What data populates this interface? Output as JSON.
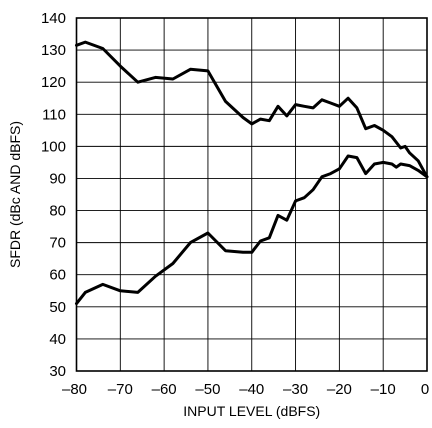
{
  "chart_data": {
    "type": "line",
    "title": "",
    "xlabel": "INPUT LEVEL (dBFS)",
    "ylabel": "SFDR (dBc AND dBFS)",
    "xlim": [
      -80,
      0
    ],
    "ylim": [
      30,
      140
    ],
    "x_ticks": [
      -80,
      -70,
      -60,
      -50,
      -40,
      -30,
      -20,
      -10,
      0
    ],
    "x_tick_labels": [
      "–80",
      "–70",
      "–60",
      "–50",
      "–40",
      "–30",
      "–20",
      "–10",
      "0"
    ],
    "y_ticks": [
      30,
      40,
      50,
      60,
      70,
      80,
      90,
      100,
      110,
      120,
      130,
      140
    ],
    "y_tick_labels": [
      "30",
      "40",
      "50",
      "60",
      "70",
      "80",
      "90",
      "100",
      "110",
      "120",
      "130",
      "140"
    ],
    "grid": true,
    "series": [
      {
        "x": [
          -80,
          -78,
          -74,
          -70,
          -66,
          -62,
          -58,
          -54,
          -50,
          -46,
          -42,
          -40,
          -38,
          -36,
          -34,
          -32,
          -30,
          -28,
          -26,
          -24,
          -22,
          -20,
          -18,
          -16,
          -14,
          -12,
          -10,
          -8,
          -6,
          -5,
          -4,
          -2,
          0
        ],
        "y": [
          131.5,
          132.5,
          130.5,
          125,
          120,
          121.5,
          121,
          124,
          123.5,
          114,
          109,
          107,
          108.5,
          108,
          112.5,
          109.5,
          113,
          112.5,
          112,
          114.5,
          113.5,
          112.5,
          115,
          112,
          105.5,
          106.5,
          105,
          103,
          99.5,
          100,
          98,
          95.5,
          90.5
        ]
      },
      {
        "x": [
          -80,
          -78,
          -74,
          -70,
          -66,
          -62,
          -58,
          -54,
          -50,
          -46,
          -42,
          -40,
          -38,
          -36,
          -34,
          -32,
          -30,
          -28,
          -26,
          -24,
          -22,
          -20,
          -18,
          -16,
          -14,
          -12,
          -10,
          -8,
          -7,
          -6,
          -4,
          -2,
          0
        ],
        "y": [
          51,
          54.5,
          57,
          55,
          54.5,
          59.5,
          63.5,
          70,
          73,
          67.5,
          67,
          67,
          70.5,
          71.5,
          78.5,
          77,
          83,
          84,
          86.5,
          90.5,
          91.5,
          93,
          97,
          96.5,
          91.5,
          94.5,
          95,
          94.5,
          93.5,
          94.5,
          94,
          92.5,
          90.5
        ]
      }
    ]
  }
}
